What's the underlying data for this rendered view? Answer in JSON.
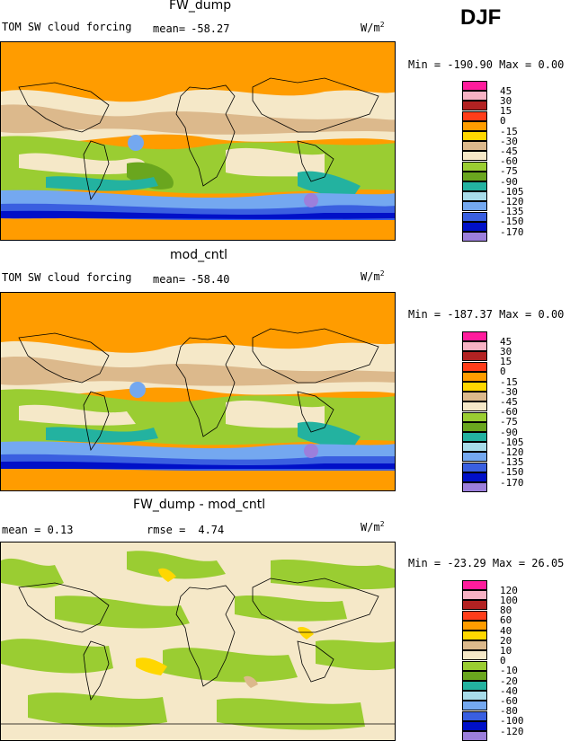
{
  "season": "DJF",
  "units_main": "W/m",
  "units_sup": "2",
  "panels": [
    {
      "title": "FW_dump",
      "left_label": "TOM SW cloud forcing",
      "stat_label": "mean=",
      "stat_value": "-58.27",
      "minmax": "Min = -190.90 Max =   0.00",
      "scheme": "main"
    },
    {
      "title": "mod_cntl",
      "left_label": "TOM SW cloud forcing",
      "stat_label": "mean=",
      "stat_value": "-58.40",
      "minmax": "Min = -187.37 Max =   0.00",
      "scheme": "main"
    },
    {
      "title": "FW_dump - mod_cntl",
      "left_label": "mean =    0.13",
      "stat_label": "rmse =",
      "stat_value": "4.74",
      "minmax": "Min = -23.29 Max =  26.05",
      "scheme": "diff"
    }
  ],
  "colorbars": {
    "main": {
      "labels": [
        "45",
        "30",
        "15",
        "0",
        "-15",
        "-30",
        "-45",
        "-60",
        "-75",
        "-90",
        "-105",
        "-120",
        "-135",
        "-150",
        "-170"
      ],
      "colors": [
        "#ff1c9c",
        "#f7b2c4",
        "#b22222",
        "#ff3d1a",
        "#ff9c00",
        "#ffd700",
        "#dcb98c",
        "#f5e8c8",
        "#9acd32",
        "#6aa61e",
        "#23b2a0",
        "#a8dcea",
        "#74a8f0",
        "#3a5fe0",
        "#0010c8",
        "#9c7fdc"
      ]
    },
    "diff": {
      "labels": [
        "120",
        "100",
        "80",
        "60",
        "40",
        "20",
        "10",
        "0",
        "-10",
        "-20",
        "-40",
        "-60",
        "-80",
        "-100",
        "-120"
      ],
      "colors": [
        "#ff1c9c",
        "#f7b2c4",
        "#b22222",
        "#ff3d1a",
        "#ff9c00",
        "#ffd700",
        "#dcb98c",
        "#f5e8c8",
        "#9acd32",
        "#6aa61e",
        "#23b2a0",
        "#a8dcea",
        "#74a8f0",
        "#3a5fe0",
        "#0010c8",
        "#9c7fdc"
      ]
    }
  },
  "chart_data": [
    {
      "type": "heatmap",
      "title": "FW_dump",
      "subtitle": "TOM SW cloud forcing",
      "mean": -58.27,
      "min": -190.9,
      "max": 0.0,
      "units": "W/m2",
      "levels": [
        45,
        30,
        15,
        0,
        -15,
        -30,
        -45,
        -60,
        -75,
        -90,
        -105,
        -120,
        -135,
        -150,
        -170
      ]
    },
    {
      "type": "heatmap",
      "title": "mod_cntl",
      "subtitle": "TOM SW cloud forcing",
      "mean": -58.4,
      "min": -187.37,
      "max": 0.0,
      "units": "W/m2",
      "levels": [
        45,
        30,
        15,
        0,
        -15,
        -30,
        -45,
        -60,
        -75,
        -90,
        -105,
        -120,
        -135,
        -150,
        -170
      ]
    },
    {
      "type": "heatmap",
      "title": "FW_dump - mod_cntl",
      "mean": 0.13,
      "rmse": 4.74,
      "min": -23.29,
      "max": 26.05,
      "units": "W/m2",
      "levels": [
        120,
        100,
        80,
        60,
        40,
        20,
        10,
        0,
        -10,
        -20,
        -40,
        -60,
        -80,
        -100,
        -120
      ]
    }
  ]
}
